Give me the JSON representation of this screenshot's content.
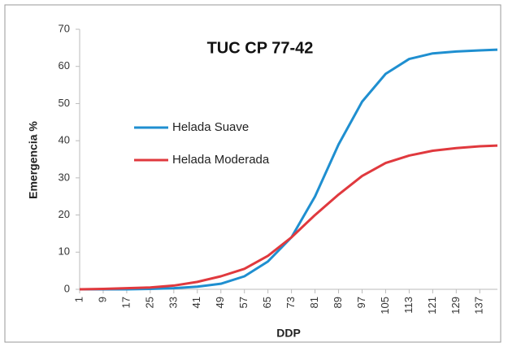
{
  "chart_data": {
    "type": "line",
    "title": "TUC CP 77-42",
    "x_label": "DDP",
    "y_label": "Emergencia %",
    "x": [
      1,
      9,
      17,
      25,
      33,
      41,
      49,
      57,
      65,
      73,
      81,
      89,
      97,
      105,
      113,
      121,
      129,
      137,
      143
    ],
    "series": [
      {
        "name": "Helada Suave",
        "color": "#1f8fd0",
        "values": [
          0,
          0,
          0,
          0.1,
          0.3,
          0.7,
          1.5,
          3.5,
          7.5,
          14,
          25,
          39,
          50.5,
          58,
          62,
          63.5,
          64,
          64.3,
          64.5
        ]
      },
      {
        "name": "Helada Moderada",
        "color": "#e0393e",
        "values": [
          0,
          0.1,
          0.3,
          0.5,
          1,
          2,
          3.5,
          5.5,
          9,
          14,
          20,
          25.5,
          30.5,
          34,
          36,
          37.3,
          38,
          38.5,
          38.7
        ]
      }
    ],
    "xlim": [
      1,
      143
    ],
    "xticks": [
      1,
      9,
      17,
      25,
      33,
      41,
      49,
      57,
      65,
      73,
      81,
      89,
      97,
      105,
      113,
      121,
      129,
      137
    ],
    "ylim": [
      0,
      70
    ],
    "yticks": [
      0,
      10,
      20,
      30,
      40,
      50,
      60,
      70
    ],
    "grid": false
  }
}
